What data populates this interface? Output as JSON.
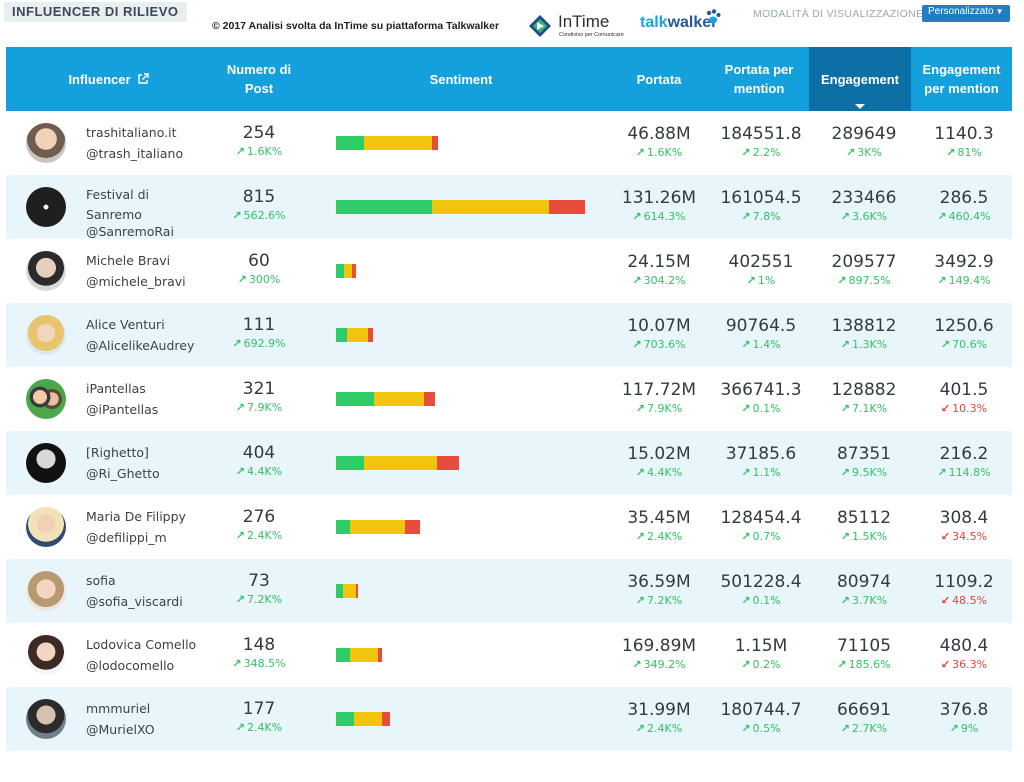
{
  "title": "INFLUENCER DI RILIEVO",
  "credit": "© 2017  Analisi svolta da InTime su piattaforma Talkwalker",
  "logos": {
    "intime": "InTime",
    "intime_sub": "Condiviso per Comunicare",
    "talk": "talk",
    "walker": "walker"
  },
  "view_mode": {
    "label": "MODALITÀ DI VISUALIZZAZIONE",
    "selected": "Personalizzato"
  },
  "colors": {
    "header": "#14a0dd",
    "header_active": "#0c6fa6",
    "positive": "#2ecc66",
    "neutral": "#f1c40f",
    "negative": "#e74c3c",
    "up": "#32c264",
    "down": "#e0463a"
  },
  "columns": {
    "influencer": "Influencer",
    "posts": "Numero di Post",
    "sentiment": "Sentiment",
    "reach": "Portata",
    "reach_per_mention": "Portata per mention",
    "engagement": "Engagement",
    "engagement_per_mention": "Engagement per mention"
  },
  "rows": [
    {
      "name": "trashitaliano.it",
      "handle": "@trash_italiano",
      "posts": "254",
      "posts_chg": "1.6K%",
      "posts_dir": "up",
      "sentiment": [
        28,
        68,
        6
      ],
      "reach": "46.88M",
      "reach_chg": "1.6K%",
      "reach_dir": "up",
      "rpm": "184551.8",
      "rpm_chg": "2.2%",
      "rpm_dir": "up",
      "eng": "289649",
      "eng_chg": "3K%",
      "eng_dir": "up",
      "epm": "1140.3",
      "epm_chg": "81%",
      "epm_dir": "up"
    },
    {
      "name": "Festival di Sanremo",
      "handle": "@SanremoRai",
      "posts": "815",
      "posts_chg": "562.6%",
      "posts_dir": "up",
      "sentiment": [
        96,
        117,
        36
      ],
      "reach": "131.26M",
      "reach_chg": "614.3%",
      "reach_dir": "up",
      "rpm": "161054.5",
      "rpm_chg": "7.8%",
      "rpm_dir": "up",
      "eng": "233466",
      "eng_chg": "3.6K%",
      "eng_dir": "up",
      "epm": "286.5",
      "epm_chg": "460.4%",
      "epm_dir": "up"
    },
    {
      "name": "Michele Bravi",
      "handle": "@michele_bravi",
      "posts": "60",
      "posts_chg": "300%",
      "posts_dir": "up",
      "sentiment": [
        8,
        8,
        4
      ],
      "reach": "24.15M",
      "reach_chg": "304.2%",
      "reach_dir": "up",
      "rpm": "402551",
      "rpm_chg": "1%",
      "rpm_dir": "up",
      "eng": "209577",
      "eng_chg": "897.5%",
      "eng_dir": "up",
      "epm": "3492.9",
      "epm_chg": "149.4%",
      "epm_dir": "up"
    },
    {
      "name": "Alice Venturi",
      "handle": "@AlicelikeAudrey",
      "posts": "111",
      "posts_chg": "692.9%",
      "posts_dir": "up",
      "sentiment": [
        11,
        21,
        5
      ],
      "reach": "10.07M",
      "reach_chg": "703.6%",
      "reach_dir": "up",
      "rpm": "90764.5",
      "rpm_chg": "1.4%",
      "rpm_dir": "up",
      "eng": "138812",
      "eng_chg": "1.3K%",
      "eng_dir": "up",
      "epm": "1250.6",
      "epm_chg": "70.6%",
      "epm_dir": "up"
    },
    {
      "name": "iPantellas",
      "handle": "@iPantellas",
      "posts": "321",
      "posts_chg": "7.9K%",
      "posts_dir": "up",
      "sentiment": [
        38,
        50,
        11
      ],
      "reach": "117.72M",
      "reach_chg": "7.9K%",
      "reach_dir": "up",
      "rpm": "366741.3",
      "rpm_chg": "0.1%",
      "rpm_dir": "up",
      "eng": "128882",
      "eng_chg": "7.1K%",
      "eng_dir": "up",
      "epm": "401.5",
      "epm_chg": "10.3%",
      "epm_dir": "down"
    },
    {
      "name": "[Righetto]",
      "handle": "@Ri_Ghetto",
      "posts": "404",
      "posts_chg": "4.4K%",
      "posts_dir": "up",
      "sentiment": [
        28,
        73,
        22
      ],
      "reach": "15.02M",
      "reach_chg": "4.4K%",
      "reach_dir": "up",
      "rpm": "37185.6",
      "rpm_chg": "1.1%",
      "rpm_dir": "up",
      "eng": "87351",
      "eng_chg": "9.5K%",
      "eng_dir": "up",
      "epm": "216.2",
      "epm_chg": "114.8%",
      "epm_dir": "up"
    },
    {
      "name": "Maria De Filippy",
      "handle": "@defilippi_m",
      "posts": "276",
      "posts_chg": "2.4K%",
      "posts_dir": "up",
      "sentiment": [
        14,
        55,
        15
      ],
      "reach": "35.45M",
      "reach_chg": "2.4K%",
      "reach_dir": "up",
      "rpm": "128454.4",
      "rpm_chg": "0.7%",
      "rpm_dir": "up",
      "eng": "85112",
      "eng_chg": "1.5K%",
      "eng_dir": "up",
      "epm": "308.4",
      "epm_chg": "34.5%",
      "epm_dir": "down"
    },
    {
      "name": "sofia",
      "handle": "@sofia_viscardi",
      "posts": "73",
      "posts_chg": "7.2K%",
      "posts_dir": "up",
      "sentiment": [
        7,
        13,
        2
      ],
      "reach": "36.59M",
      "reach_chg": "7.2K%",
      "reach_dir": "up",
      "rpm": "501228.4",
      "rpm_chg": "0.1%",
      "rpm_dir": "up",
      "eng": "80974",
      "eng_chg": "3.7K%",
      "eng_dir": "up",
      "epm": "1109.2",
      "epm_chg": "48.5%",
      "epm_dir": "down"
    },
    {
      "name": "Lodovica Comello",
      "handle": "@lodocomello",
      "posts": "148",
      "posts_chg": "348.5%",
      "posts_dir": "up",
      "sentiment": [
        14,
        28,
        4
      ],
      "reach": "169.89M",
      "reach_chg": "349.2%",
      "reach_dir": "up",
      "rpm": "1.15M",
      "rpm_chg": "0.2%",
      "rpm_dir": "up",
      "eng": "71105",
      "eng_chg": "185.6%",
      "eng_dir": "up",
      "epm": "480.4",
      "epm_chg": "36.3%",
      "epm_dir": "down"
    },
    {
      "name": "mmmuriel",
      "handle": "@MurielXO",
      "posts": "177",
      "posts_chg": "2.4K%",
      "posts_dir": "up",
      "sentiment": [
        18,
        28,
        8
      ],
      "reach": "31.99M",
      "reach_chg": "2.4K%",
      "reach_dir": "up",
      "rpm": "180744.7",
      "rpm_chg": "0.5%",
      "rpm_dir": "up",
      "eng": "66691",
      "eng_chg": "2.7K%",
      "eng_dir": "up",
      "epm": "376.8",
      "epm_chg": "9%",
      "epm_dir": "up"
    }
  ]
}
